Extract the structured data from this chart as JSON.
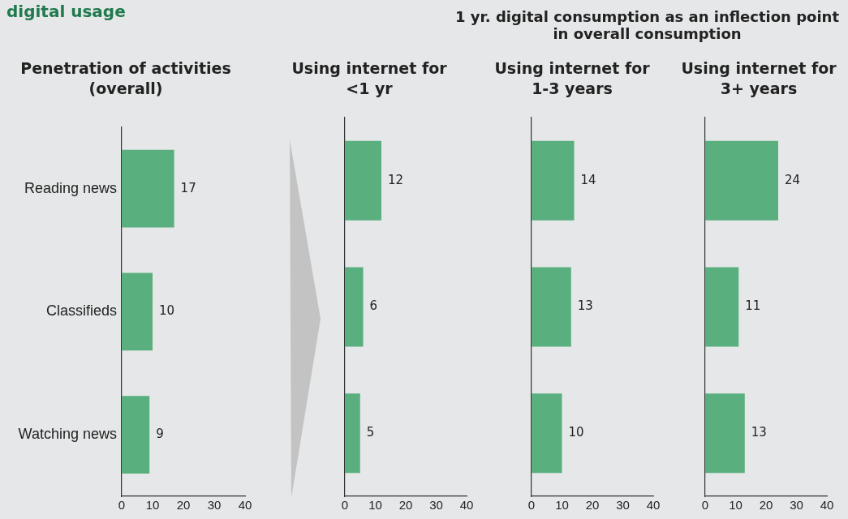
{
  "chart_data": [
    {
      "type": "bar",
      "orientation": "horizontal",
      "title": "Penetration of activities (overall)",
      "annotations": [
        "digital usage"
      ],
      "categories": [
        "Reading news",
        "Classifieds",
        "Watching news"
      ],
      "values": [
        17,
        10,
        9
      ],
      "color": "#5aaf7f",
      "xlim": [
        0,
        40
      ],
      "xticks": [
        0,
        10,
        20,
        30,
        40
      ],
      "data_labels": true
    },
    {
      "type": "bar",
      "orientation": "horizontal",
      "title": "Using internet for <1 yr",
      "annotations": [
        "1 yr. digital consumption as an inflection point in overall consumption"
      ],
      "categories": [
        null,
        null,
        null
      ],
      "values": [
        12,
        6,
        5
      ],
      "color": "#5aaf7f",
      "xlim": [
        0,
        40
      ],
      "xticks": [
        0,
        10,
        20,
        30,
        40
      ],
      "data_labels": true,
      "tick_labels": "x"
    },
    {
      "type": "bar",
      "orientation": "horizontal",
      "title": "Using internet for 1-3 years",
      "categories": [
        null,
        null,
        null
      ],
      "values": [
        14,
        13,
        10
      ],
      "color": "#5aaf7f",
      "xlim": [
        0,
        40
      ],
      "xticks": [
        0,
        10,
        20,
        30,
        40
      ],
      "data_labels": true,
      "tick_labels": "x"
    },
    {
      "type": "bar",
      "orientation": "horizontal",
      "title": "Using internet for 3+ years",
      "categories": [
        null,
        null,
        null
      ],
      "values": [
        24,
        11,
        13
      ],
      "color": "#5aaf7f",
      "xlim": [
        0,
        40
      ],
      "xticks": [
        0,
        10,
        20,
        30,
        40
      ],
      "data_labels": true,
      "tick_labels": "x"
    }
  ]
}
